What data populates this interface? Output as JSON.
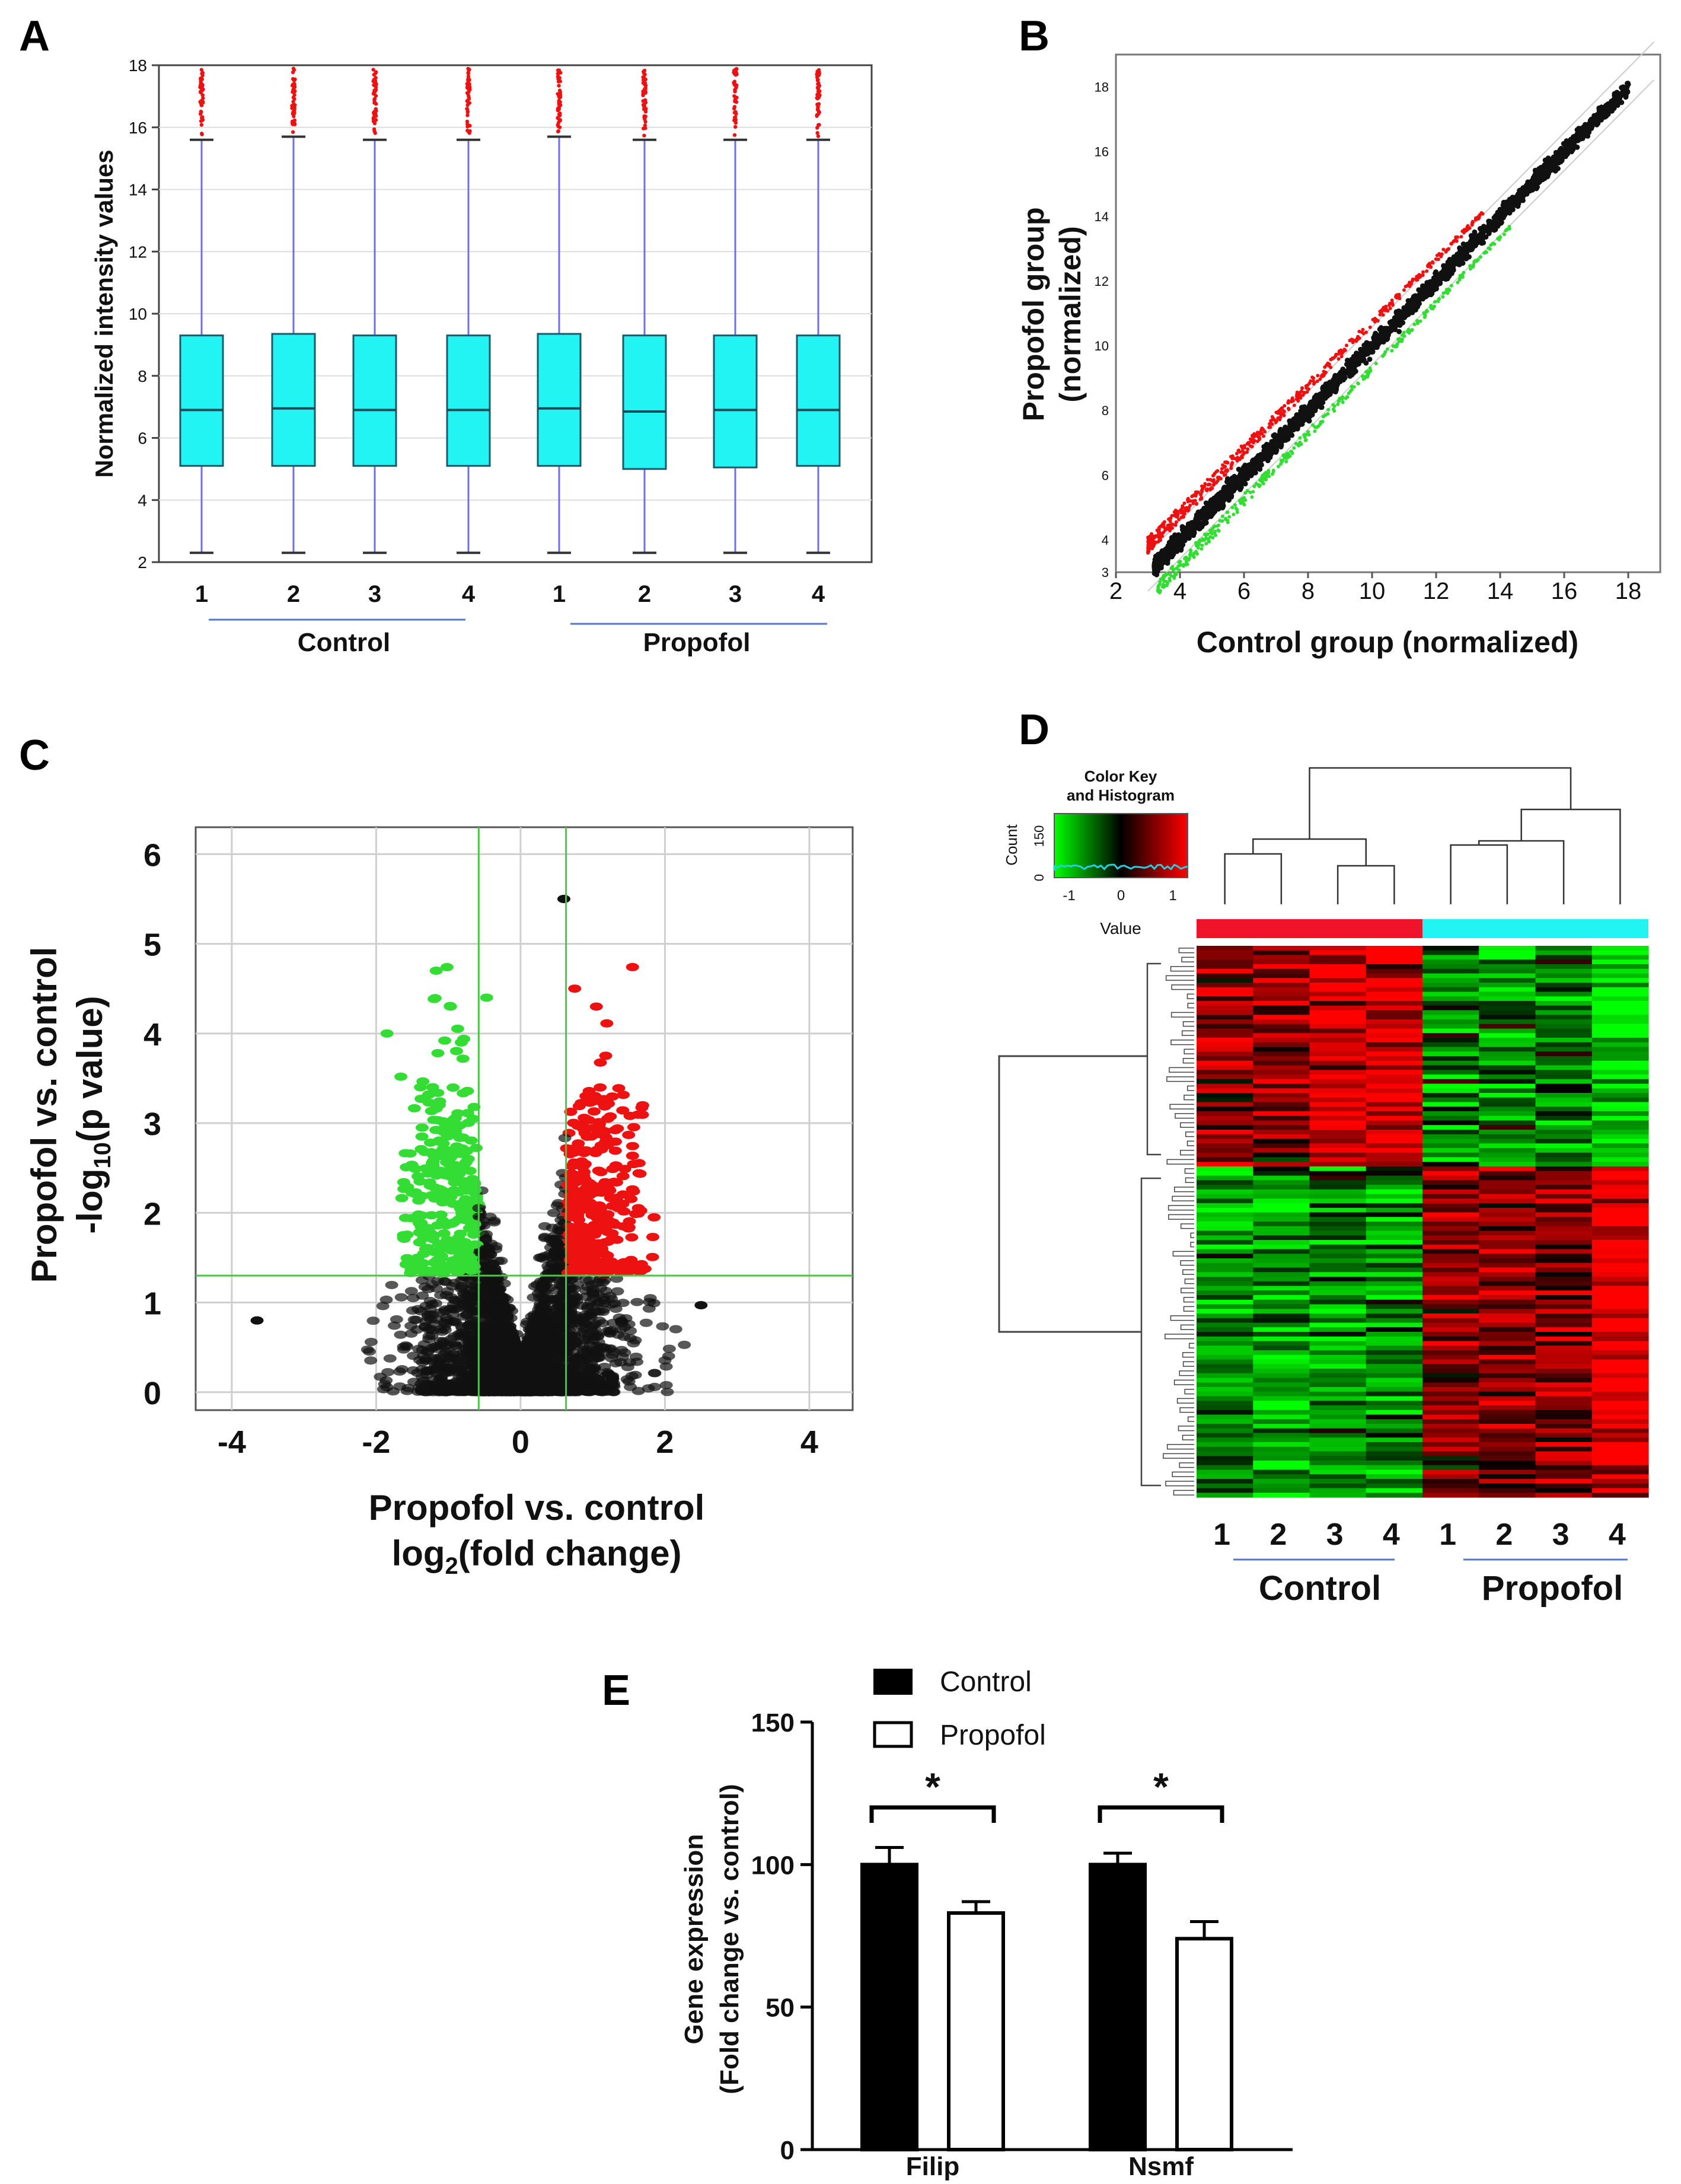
{
  "panel_labels": {
    "a": "A",
    "b": "B",
    "c": "C",
    "d": "D",
    "e": "E"
  },
  "colors": {
    "box_fill": "#22f4f4",
    "whisker": "#6f6fe6",
    "outlier": "#ee1111",
    "up": "#ee1111",
    "down": "#33dd33",
    "neutral": "#111111",
    "group_control": "#f0142a",
    "group_propofol": "#22f4f4",
    "threshold": "#46c846"
  },
  "chart_data": [
    {
      "panel": "A",
      "type": "box",
      "ylabel": "Normalized intensity values",
      "ylim": [
        2,
        18
      ],
      "yticks": [
        "2",
        "4",
        "6",
        "8",
        "10",
        "12",
        "14",
        "16",
        "18"
      ],
      "samples": [
        "1",
        "2",
        "3",
        "4",
        "1",
        "2",
        "3",
        "4"
      ],
      "groups": [
        {
          "name": "Control",
          "samples": [
            0,
            1,
            2,
            3
          ]
        },
        {
          "name": "Propofol",
          "samples": [
            4,
            5,
            6,
            7
          ]
        }
      ],
      "boxes": [
        {
          "min": 2.3,
          "q1": 5.1,
          "median": 6.9,
          "q3": 9.3,
          "max": 15.6,
          "outlier_max": 17.9
        },
        {
          "min": 2.3,
          "q1": 5.1,
          "median": 6.95,
          "q3": 9.35,
          "max": 15.7,
          "outlier_max": 17.9
        },
        {
          "min": 2.3,
          "q1": 5.1,
          "median": 6.9,
          "q3": 9.3,
          "max": 15.6,
          "outlier_max": 17.9
        },
        {
          "min": 2.3,
          "q1": 5.1,
          "median": 6.9,
          "q3": 9.3,
          "max": 15.6,
          "outlier_max": 17.9
        },
        {
          "min": 2.3,
          "q1": 5.1,
          "median": 6.95,
          "q3": 9.35,
          "max": 15.7,
          "outlier_max": 17.9
        },
        {
          "min": 2.3,
          "q1": 5.0,
          "median": 6.85,
          "q3": 9.3,
          "max": 15.6,
          "outlier_max": 17.9
        },
        {
          "min": 2.3,
          "q1": 5.05,
          "median": 6.9,
          "q3": 9.3,
          "max": 15.6,
          "outlier_max": 17.9
        },
        {
          "min": 2.3,
          "q1": 5.1,
          "median": 6.9,
          "q3": 9.3,
          "max": 15.6,
          "outlier_max": 17.9
        }
      ]
    },
    {
      "panel": "B",
      "type": "scatter",
      "xlabel": "Control group (normalized)",
      "ylabel_line1": "Propofol group",
      "ylabel_line2": "(normalized)",
      "xlim": [
        2,
        19
      ],
      "ylim": [
        3,
        19
      ],
      "xticks": [
        "2",
        "4",
        "6",
        "8",
        "10",
        "12",
        "14",
        "16",
        "18"
      ],
      "yticks": [
        "3",
        "4",
        "6",
        "8",
        "10",
        "12",
        "14",
        "16",
        "18"
      ],
      "point_range": [
        3,
        18
      ],
      "fold_change_cutoff": 1.5
    },
    {
      "panel": "C",
      "type": "scatter",
      "xlabel_line1": "Propofol vs. control",
      "xlabel_line2": "log",
      "xlabel_sub": "2",
      "xlabel_tail": "(fold change)",
      "ylabel_line1": "Propofol vs. control",
      "ylabel_line2": "-log",
      "ylabel_sub": "10",
      "ylabel_tail": "(p value)",
      "xlim": [
        -4.5,
        4.6
      ],
      "ylim": [
        -0.2,
        6.3
      ],
      "xticks": [
        "-4",
        "-2",
        "0",
        "2",
        "4"
      ],
      "yticks": [
        "0",
        "1",
        "2",
        "3",
        "4",
        "5",
        "6"
      ],
      "thresholds": {
        "fc_low": -0.58,
        "fc_high": 0.63,
        "p_line": 1.3
      },
      "highlights": [
        {
          "x": 0.6,
          "y": 5.5,
          "class": "neutral"
        },
        {
          "x": -0.47,
          "y": 4.4,
          "class": "down"
        },
        {
          "x": -0.97,
          "y": 4.3,
          "class": "down"
        },
        {
          "x": -1.85,
          "y": 4.0,
          "class": "down"
        },
        {
          "x": 1.05,
          "y": 4.3,
          "class": "up"
        },
        {
          "x": 0.75,
          "y": 4.5,
          "class": "up"
        },
        {
          "x": 1.85,
          "y": 1.95,
          "class": "up"
        },
        {
          "x": -3.65,
          "y": 0.8,
          "class": "neutral"
        },
        {
          "x": 2.5,
          "y": 0.97,
          "class": "neutral"
        }
      ]
    },
    {
      "panel": "D",
      "type": "heatmap",
      "color_key_title_line1": "Color Key",
      "color_key_title_line2": "and Histogram",
      "count_label": "Count",
      "count_ticks": [
        "0",
        "150"
      ],
      "value_label": "Value",
      "value_ticks": [
        "-1",
        "0",
        "1"
      ],
      "samples": [
        "1",
        "2",
        "3",
        "4",
        "1",
        "2",
        "3",
        "4"
      ],
      "groups": [
        {
          "name": "Control",
          "samples": [
            0,
            1,
            2,
            3
          ]
        },
        {
          "name": "Propofol",
          "samples": [
            4,
            5,
            6,
            7
          ]
        }
      ],
      "row_count": 120,
      "upper_cluster_rows": 48,
      "colormap": [
        "#00ff00",
        "#000000",
        "#ff0000"
      ]
    },
    {
      "panel": "E",
      "type": "bar",
      "ylabel_line1": "Gene expression",
      "ylabel_line2": "(Fold change vs. control)",
      "ylim": [
        0,
        150
      ],
      "yticks": [
        "0",
        "50",
        "100",
        "150"
      ],
      "categories": [
        "Filip",
        "Nsmf"
      ],
      "series": [
        {
          "name": "Control",
          "values": [
            100,
            100
          ],
          "errors": [
            6,
            4
          ]
        },
        {
          "name": "Propofol",
          "values": [
            83,
            74
          ],
          "errors": [
            4,
            6
          ]
        }
      ],
      "significance": [
        "*",
        "*"
      ]
    }
  ]
}
